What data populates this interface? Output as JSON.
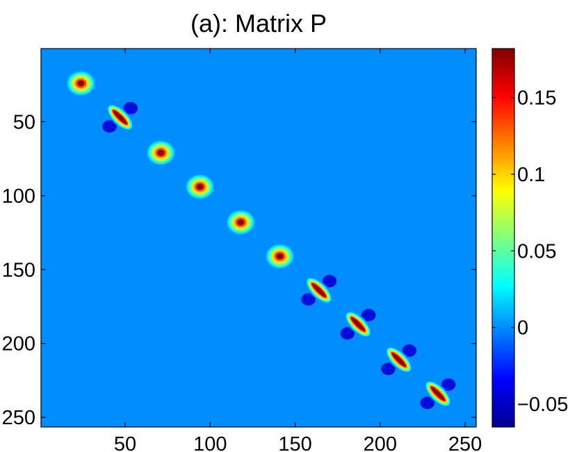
{
  "chart_data": {
    "type": "heatmap",
    "title": "(a): Matrix P",
    "xlabel": "",
    "ylabel": "",
    "x_range": [
      0.5,
      256.5
    ],
    "y_range": [
      0.5,
      256.5
    ],
    "y_reversed": true,
    "x_ticks": [
      {
        "value": 50,
        "label": "50"
      },
      {
        "value": 100,
        "label": "100"
      },
      {
        "value": 150,
        "label": "150"
      },
      {
        "value": 200,
        "label": "200"
      },
      {
        "value": 250,
        "label": "250"
      }
    ],
    "y_ticks": [
      {
        "value": 50,
        "label": "50"
      },
      {
        "value": 100,
        "label": "100"
      },
      {
        "value": 150,
        "label": "150"
      },
      {
        "value": 200,
        "label": "200"
      },
      {
        "value": 250,
        "label": "250"
      }
    ],
    "colormap": "jet",
    "background_value": 0,
    "colorbar": {
      "range": [
        -0.065,
        0.182
      ],
      "ticks": [
        {
          "value": -0.05,
          "label": "−0.05"
        },
        {
          "value": 0,
          "label": "0"
        },
        {
          "value": 0.05,
          "label": "0.05"
        },
        {
          "value": 0.1,
          "label": "0.1"
        },
        {
          "value": 0.15,
          "label": "0.15"
        }
      ]
    },
    "blocks": [
      {
        "center": [
          24,
          24
        ],
        "kind": "round",
        "peak": 0.18
      },
      {
        "center": [
          47,
          47
        ],
        "kind": "elongated",
        "peak": 0.18
      },
      {
        "center": [
          71,
          71
        ],
        "kind": "round",
        "peak": 0.18
      },
      {
        "center": [
          94,
          94
        ],
        "kind": "round",
        "peak": 0.18
      },
      {
        "center": [
          118,
          118
        ],
        "kind": "round",
        "peak": 0.18
      },
      {
        "center": [
          141,
          141
        ],
        "kind": "round",
        "peak": 0.18
      },
      {
        "center": [
          164,
          164
        ],
        "kind": "elongated",
        "peak": 0.18
      },
      {
        "center": [
          187,
          187
        ],
        "kind": "elongated",
        "peak": 0.18
      },
      {
        "center": [
          211,
          211
        ],
        "kind": "elongated",
        "peak": 0.18
      },
      {
        "center": [
          234,
          234
        ],
        "kind": "elongated",
        "peak": 0.18
      }
    ]
  }
}
